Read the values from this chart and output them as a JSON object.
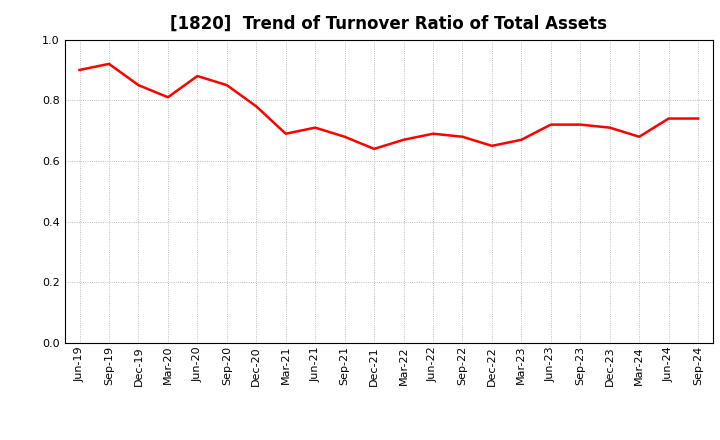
{
  "title": "[1820]  Trend of Turnover Ratio of Total Assets",
  "labels": [
    "Jun-19",
    "Sep-19",
    "Dec-19",
    "Mar-20",
    "Jun-20",
    "Sep-20",
    "Dec-20",
    "Mar-21",
    "Jun-21",
    "Sep-21",
    "Dec-21",
    "Mar-22",
    "Jun-22",
    "Sep-22",
    "Dec-22",
    "Mar-23",
    "Jun-23",
    "Sep-23",
    "Dec-23",
    "Mar-24",
    "Jun-24",
    "Sep-24"
  ],
  "values": [
    0.9,
    0.92,
    0.85,
    0.81,
    0.88,
    0.85,
    0.78,
    0.69,
    0.71,
    0.68,
    0.64,
    0.67,
    0.69,
    0.68,
    0.65,
    0.67,
    0.72,
    0.72,
    0.71,
    0.68,
    0.74,
    0.74
  ],
  "line_color": "#ff0000",
  "line_width": 1.8,
  "background_color": "#ffffff",
  "ylim": [
    0.0,
    1.0
  ],
  "yticks": [
    0.0,
    0.2,
    0.4,
    0.6,
    0.8,
    1.0
  ],
  "grid_color": "#aaaaaa",
  "title_fontsize": 12,
  "tick_fontsize": 8,
  "title_color": "#000000"
}
